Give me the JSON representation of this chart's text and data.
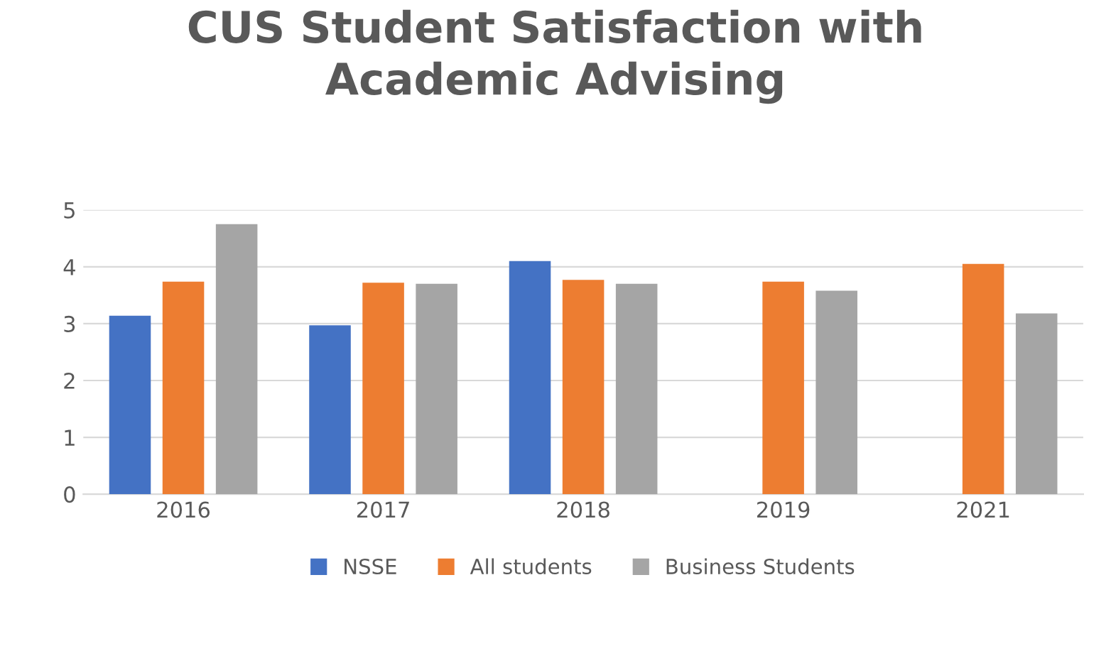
{
  "chart_data": {
    "type": "bar",
    "title": "CUS Student Satisfaction with\nAcademic Advising",
    "categories": [
      "2016",
      "2017",
      "2018",
      "2019",
      "2021"
    ],
    "series": [
      {
        "name": "NSSE",
        "color": "#4472c4",
        "values": [
          3.14,
          2.97,
          4.1,
          null,
          null
        ]
      },
      {
        "name": "All students",
        "color": "#ed7d31",
        "values": [
          3.74,
          3.72,
          3.77,
          3.74,
          4.05
        ]
      },
      {
        "name": "Business Students",
        "color": "#a5a5a5",
        "values": [
          4.75,
          3.7,
          3.7,
          3.58,
          3.18
        ]
      }
    ],
    "ylim": [
      0,
      5
    ],
    "yticks": [
      0,
      1,
      2,
      3,
      4,
      5
    ],
    "grid": "y",
    "legend": "bottom"
  }
}
